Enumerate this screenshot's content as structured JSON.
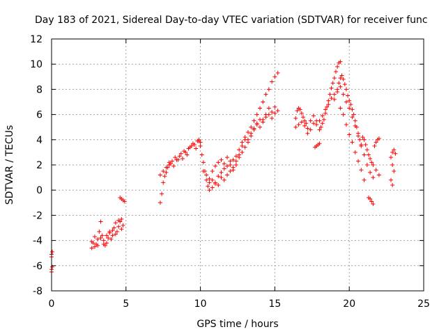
{
  "chart_data": {
    "type": "scatter",
    "title": "Day 183 of 2021, Sidereal Day-to-day VTEC variation (SDTVAR) for receiver func",
    "xlabel": "GPS time / hours",
    "ylabel": "SDTVAR / TECUs",
    "xlim": [
      0,
      25
    ],
    "ylim": [
      -8,
      12
    ],
    "xticks": [
      0,
      5,
      10,
      15,
      20,
      25
    ],
    "yticks": [
      -8,
      -6,
      -4,
      -2,
      0,
      2,
      4,
      6,
      8,
      10,
      12
    ],
    "grid": true,
    "marker": "+",
    "color": "#ff0000",
    "series": [
      {
        "name": "SDTVAR",
        "segments": [
          {
            "x": [
              0.0,
              0.0,
              0.0,
              0.05,
              0.05,
              0.0
            ],
            "y": [
              -5.3,
              -5.1,
              -6.3,
              -6.1,
              -4.9,
              -6.5
            ]
          },
          {
            "x": [
              2.7,
              2.8,
              2.9,
              3.0,
              3.1,
              3.2,
              3.3,
              3.4,
              3.5,
              3.6,
              3.7,
              3.8,
              3.9,
              4.0,
              4.1,
              4.2,
              4.3,
              4.4,
              4.5,
              4.6,
              4.7,
              4.8
            ],
            "y": [
              -4.6,
              -4.2,
              -3.7,
              -4.3,
              -3.9,
              -3.3,
              -2.5,
              -3.6,
              -4.0,
              -4.4,
              -4.2,
              -3.8,
              -3.3,
              -3.9,
              -3.6,
              -3.0,
              -2.6,
              -3.3,
              -2.9,
              -2.5,
              -3.1,
              -2.8
            ]
          },
          {
            "x": [
              2.7,
              2.9,
              3.1,
              3.3,
              3.5,
              3.7,
              3.9,
              4.1,
              4.3,
              4.5,
              4.7
            ],
            "y": [
              -4.1,
              -4.5,
              -4.4,
              -3.8,
              -4.3,
              -3.6,
              -3.4,
              -3.2,
              -3.5,
              -2.4,
              -2.3
            ]
          },
          {
            "x": [
              4.6,
              4.7,
              4.8,
              4.9
            ],
            "y": [
              -0.6,
              -0.7,
              -0.8,
              -0.9
            ]
          },
          {
            "x": [
              7.3,
              7.4,
              7.5,
              7.6,
              7.7,
              7.8,
              7.9,
              8.0,
              8.2,
              8.4,
              8.6,
              8.8,
              9.0,
              9.2,
              9.4,
              9.6,
              9.8,
              9.9,
              10.0
            ],
            "y": [
              -1.0,
              -0.3,
              0.6,
              1.1,
              1.4,
              1.8,
              2.0,
              2.1,
              1.9,
              2.4,
              2.7,
              2.5,
              3.0,
              3.3,
              3.5,
              3.6,
              3.9,
              4.0,
              3.8
            ]
          },
          {
            "x": [
              7.3,
              7.5,
              7.7,
              7.9,
              8.1,
              8.3,
              8.5,
              8.7,
              8.9,
              9.1,
              9.3,
              9.5,
              9.7,
              9.9
            ],
            "y": [
              1.2,
              1.5,
              1.8,
              2.2,
              2.3,
              2.6,
              2.4,
              2.9,
              3.1,
              2.8,
              3.4,
              3.7,
              3.3,
              3.9
            ]
          },
          {
            "x": [
              10.0,
              10.1,
              10.2,
              10.3,
              10.4,
              10.5,
              10.6,
              10.8,
              11.0,
              11.2,
              11.4,
              11.6,
              11.8,
              12.0,
              12.2,
              12.4,
              12.6,
              12.8,
              13.0,
              13.2,
              13.4,
              13.6,
              13.8,
              14.0,
              14.2,
              14.4,
              14.6,
              14.8,
              15.0,
              15.2
            ],
            "y": [
              3.5,
              2.8,
              2.2,
              1.5,
              0.8,
              0.3,
              0.0,
              0.2,
              0.6,
              0.4,
              1.0,
              0.8,
              1.2,
              1.5,
              1.8,
              2.3,
              2.8,
              3.5,
              4.0,
              4.6,
              5.0,
              5.5,
              6.0,
              6.5,
              7.0,
              7.6,
              8.0,
              8.6,
              9.0,
              9.3
            ]
          },
          {
            "x": [
              10.2,
              10.4,
              10.6,
              10.8,
              11.0,
              11.2,
              11.4,
              11.6,
              11.8,
              12.0,
              12.2,
              12.4,
              12.6,
              12.8,
              13.0,
              13.2,
              13.4,
              13.6,
              13.8,
              14.0,
              14.2,
              14.4,
              14.6,
              14.8,
              15.0,
              15.2
            ],
            "y": [
              1.5,
              1.2,
              0.9,
              1.5,
              1.9,
              2.2,
              2.4,
              2.1,
              2.6,
              2.3,
              1.6,
              2.0,
              2.6,
              3.0,
              3.4,
              3.8,
              4.3,
              4.8,
              5.2,
              5.0,
              5.6,
              6.0,
              6.5,
              6.2,
              6.6,
              6.3
            ]
          },
          {
            "x": [
              10.6,
              10.8,
              11.0,
              11.2,
              11.4,
              11.6,
              11.8,
              12.0,
              12.2,
              12.4,
              12.6,
              12.8,
              13.0,
              13.2,
              13.4,
              13.6,
              13.8,
              14.0,
              14.2,
              14.4,
              14.6,
              14.8,
              15.0
            ],
            "y": [
              0.6,
              0.8,
              0.5,
              1.1,
              1.4,
              1.7,
              1.9,
              2.0,
              2.4,
              2.7,
              3.2,
              3.8,
              4.2,
              4.0,
              4.5,
              4.9,
              5.3,
              5.6,
              5.4,
              5.8,
              6.0,
              5.7,
              6.1
            ]
          },
          {
            "x": [
              16.4,
              16.5,
              16.6,
              16.7,
              16.8,
              16.9,
              17.0,
              17.1,
              17.2,
              17.4,
              17.6,
              17.8,
              18.0,
              18.1,
              18.2,
              18.3,
              18.4,
              18.5,
              18.6,
              18.7,
              18.8,
              18.9,
              19.0,
              19.1,
              19.2,
              19.3,
              19.4
            ],
            "y": [
              5.7,
              6.3,
              6.5,
              6.4,
              6.1,
              5.8,
              5.5,
              5.3,
              4.9,
              5.5,
              5.9,
              5.5,
              4.8,
              5.0,
              5.3,
              5.6,
              6.1,
              6.6,
              7.1,
              7.6,
              8.1,
              8.5,
              8.9,
              9.4,
              9.8,
              10.1,
              10.2
            ]
          },
          {
            "x": [
              16.4,
              16.6,
              16.8,
              17.0,
              17.2,
              17.4,
              17.6,
              17.8,
              18.0,
              18.2,
              18.4,
              18.6,
              18.8,
              19.0,
              19.2
            ],
            "y": [
              5.0,
              5.2,
              5.4,
              5.1,
              4.5,
              4.8,
              5.3,
              5.2,
              5.5,
              5.9,
              6.4,
              6.8,
              7.3,
              7.6,
              8.0
            ]
          },
          {
            "x": [
              17.7,
              17.8,
              17.9,
              18.0
            ],
            "y": [
              3.4,
              3.5,
              3.6,
              3.7
            ]
          },
          {
            "x": [
              19.3,
              19.4,
              19.5,
              19.6,
              19.7,
              19.8,
              19.9,
              20.0,
              20.1,
              20.2,
              20.3,
              20.4,
              20.5,
              20.6,
              20.7,
              20.8,
              20.9,
              21.0,
              21.1,
              21.2,
              21.3,
              21.4,
              21.5,
              21.6,
              21.7,
              21.8,
              21.9,
              22.0
            ],
            "y": [
              8.5,
              8.9,
              9.1,
              8.8,
              8.4,
              8.0,
              7.5,
              7.1,
              6.8,
              6.4,
              6.0,
              5.5,
              5.0,
              4.5,
              4.0,
              3.5,
              4.2,
              4.0,
              3.6,
              3.2,
              2.8,
              2.5,
              2.2,
              2.0,
              3.5,
              3.8,
              4.0,
              4.1
            ]
          },
          {
            "x": [
              19.0,
              19.2,
              19.4,
              19.6,
              19.8,
              20.0,
              20.2,
              20.4,
              20.6,
              20.8,
              21.0,
              21.2,
              21.4,
              21.6,
              21.8,
              22.0
            ],
            "y": [
              7.2,
              7.8,
              8.2,
              7.6,
              7.0,
              6.5,
              5.8,
              5.1,
              4.3,
              3.6,
              2.8,
              2.0,
              1.4,
              1.0,
              1.6,
              1.2
            ]
          },
          {
            "x": [
              19.4,
              19.6,
              19.8,
              20.0,
              20.2,
              20.4,
              20.6,
              20.8,
              21.0
            ],
            "y": [
              6.5,
              6.0,
              5.2,
              4.4,
              3.8,
              3.0,
              2.3,
              1.6,
              0.8
            ]
          },
          {
            "x": [
              21.3,
              21.4,
              21.5,
              21.6
            ],
            "y": [
              -0.6,
              -0.7,
              -0.9,
              -1.1
            ]
          },
          {
            "x": [
              22.8,
              22.9,
              23.0,
              23.1,
              22.9,
              23.0,
              22.8,
              22.9
            ],
            "y": [
              2.6,
              3.0,
              3.2,
              2.9,
              2.0,
              1.5,
              0.8,
              0.4
            ]
          }
        ]
      }
    ]
  }
}
